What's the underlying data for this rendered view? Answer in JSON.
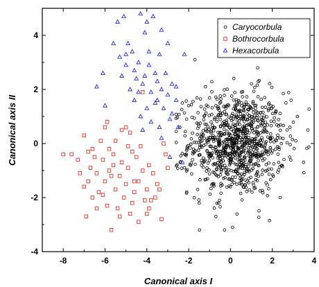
{
  "chart_data": {
    "type": "scatter",
    "xlabel": "Canonical axis I",
    "ylabel": "Canonical axis II",
    "xlim": [
      -9,
      4
    ],
    "ylim": [
      -4,
      5
    ],
    "xticks": [
      -8,
      -6,
      -4,
      -2,
      0,
      2,
      4
    ],
    "yticks": [
      -4,
      -2,
      0,
      2,
      4
    ],
    "grid": false,
    "legend_position": "top-right",
    "series": [
      {
        "name": "Caryocorbula",
        "marker": "circle",
        "color": "#000000",
        "center": [
          0.3,
          0.0
        ],
        "spread": [
          1.15,
          0.95
        ],
        "count": 950,
        "points": [
          [
            -2.0,
            1.4
          ],
          [
            -2.4,
            -0.7
          ],
          [
            -2.2,
            -0.9
          ],
          [
            -2.1,
            0.9
          ],
          [
            -1.7,
            3.1
          ],
          [
            -1.2,
            2.1
          ],
          [
            1.3,
            2.8
          ],
          [
            0.1,
            -3.1
          ],
          [
            -0.7,
            -2.7
          ],
          [
            3.2,
            1.0
          ],
          [
            3.7,
            0.5
          ],
          [
            2.9,
            1.6
          ],
          [
            -1.9,
            -0.8
          ],
          [
            -2.3,
            1.5
          ]
        ]
      },
      {
        "name": "Bothrocorbula",
        "marker": "square",
        "color": "#e8302a",
        "points": [
          [
            -8.0,
            -0.4
          ],
          [
            -7.6,
            -0.4
          ],
          [
            -7.3,
            -0.6
          ],
          [
            -7.0,
            0.3
          ],
          [
            -7.0,
            -1.6
          ],
          [
            -6.9,
            -2.7
          ],
          [
            -6.8,
            -0.3
          ],
          [
            -6.7,
            -0.9
          ],
          [
            -6.6,
            -2.0
          ],
          [
            -6.5,
            -0.5
          ],
          [
            -6.4,
            -1.1
          ],
          [
            -6.3,
            -1.8
          ],
          [
            -6.2,
            0.1
          ],
          [
            -6.1,
            -0.6
          ],
          [
            -6.0,
            -1.4
          ],
          [
            -6.0,
            0.6
          ],
          [
            -5.9,
            0.8
          ],
          [
            -5.9,
            -2.3
          ],
          [
            -5.8,
            -0.2
          ],
          [
            -5.8,
            -1.0
          ],
          [
            -5.7,
            -3.2
          ],
          [
            -5.6,
            -0.4
          ],
          [
            -5.5,
            -1.7
          ],
          [
            -5.5,
            0.1
          ],
          [
            -5.4,
            -2.4
          ],
          [
            -5.3,
            -1.2
          ],
          [
            -5.2,
            -0.7
          ],
          [
            -5.2,
            0.5
          ],
          [
            -5.1,
            -2.0
          ],
          [
            -5.0,
            -1.5
          ],
          [
            -4.9,
            -0.9
          ],
          [
            -4.8,
            0.4
          ],
          [
            -4.8,
            -2.6
          ],
          [
            -4.7,
            -0.3
          ],
          [
            -4.6,
            -1.8
          ],
          [
            -4.6,
            -1.4
          ],
          [
            -4.5,
            -0.5
          ],
          [
            -4.4,
            -2.9
          ],
          [
            -4.3,
            -0.1
          ],
          [
            -4.2,
            1.9
          ],
          [
            -4.2,
            -1.0
          ],
          [
            -4.1,
            -2.1
          ],
          [
            -4.0,
            -1.7
          ],
          [
            -3.9,
            -2.4
          ],
          [
            -3.8,
            -2.1
          ],
          [
            -3.7,
            -1.1
          ],
          [
            -3.6,
            -2.0
          ],
          [
            -3.4,
            -1.7
          ],
          [
            -3.3,
            -2.8
          ],
          [
            -3.2,
            0.0
          ],
          [
            -3.1,
            -0.4
          ],
          [
            -3.0,
            -0.9
          ],
          [
            -7.2,
            -1.1
          ],
          [
            -6.4,
            -2.4
          ],
          [
            -5.6,
            -0.8
          ],
          [
            -4.9,
            -0.1
          ],
          [
            -4.4,
            -1.4
          ],
          [
            -3.9,
            -0.8
          ],
          [
            -6.1,
            -1.9
          ],
          [
            -5.3,
            -2.7
          ],
          [
            -6.6,
            -0.2
          ],
          [
            -5.0,
            0.6
          ],
          [
            -3.5,
            -1.5
          ],
          [
            -4.0,
            -2.6
          ],
          [
            -6.8,
            -1.4
          ],
          [
            -5.7,
            -1.2
          ],
          [
            -4.7,
            -2.2
          ]
        ]
      },
      {
        "name": "Hexacorbula",
        "marker": "triangle",
        "color": "#2a2ad8",
        "points": [
          [
            -6.4,
            2.1
          ],
          [
            -6.1,
            2.6
          ],
          [
            -6.0,
            1.4
          ],
          [
            -5.6,
            3.7
          ],
          [
            -5.4,
            4.5
          ],
          [
            -5.3,
            3.2
          ],
          [
            -5.2,
            2.5
          ],
          [
            -5.1,
            4.7
          ],
          [
            -5.0,
            2.9
          ],
          [
            -4.9,
            3.7
          ],
          [
            -4.8,
            2.0
          ],
          [
            -4.7,
            3.4
          ],
          [
            -4.6,
            1.6
          ],
          [
            -4.5,
            2.4
          ],
          [
            -4.4,
            3.0
          ],
          [
            -4.3,
            1.0
          ],
          [
            -4.3,
            4.8
          ],
          [
            -4.2,
            2.2
          ],
          [
            -4.1,
            4.1
          ],
          [
            -4.0,
            4.5
          ],
          [
            -4.0,
            1.3
          ],
          [
            -3.9,
            2.9
          ],
          [
            -3.8,
            1.9
          ],
          [
            -3.8,
            0.8
          ],
          [
            -3.7,
            4.7
          ],
          [
            -3.6,
            1.5
          ],
          [
            -3.5,
            2.3
          ],
          [
            -3.4,
            0.6
          ],
          [
            -3.4,
            3.3
          ],
          [
            -3.3,
            2.0
          ],
          [
            -3.3,
            4.2
          ],
          [
            -3.2,
            1.3
          ],
          [
            -3.1,
            2.6
          ],
          [
            -3.0,
            1.8
          ],
          [
            -3.0,
            3.7
          ],
          [
            -2.9,
            0.9
          ],
          [
            -2.8,
            2.2
          ],
          [
            -2.8,
            1.1
          ],
          [
            -2.6,
            2.1
          ],
          [
            -2.6,
            1.6
          ],
          [
            -2.5,
            0.6
          ],
          [
            -2.3,
            -0.7
          ],
          [
            -2.2,
            3.3
          ],
          [
            -4.6,
            2.7
          ],
          [
            -5.0,
            3.3
          ],
          [
            -4.1,
            2.5
          ],
          [
            -3.5,
            1.6
          ],
          [
            -4.4,
            1.9
          ],
          [
            -3.9,
            3.4
          ],
          [
            -3.6,
            2.6
          ],
          [
            -4.2,
            0.5
          ],
          [
            -3.3,
            0.2
          ],
          [
            -2.9,
            -0.5
          ]
        ]
      }
    ]
  }
}
